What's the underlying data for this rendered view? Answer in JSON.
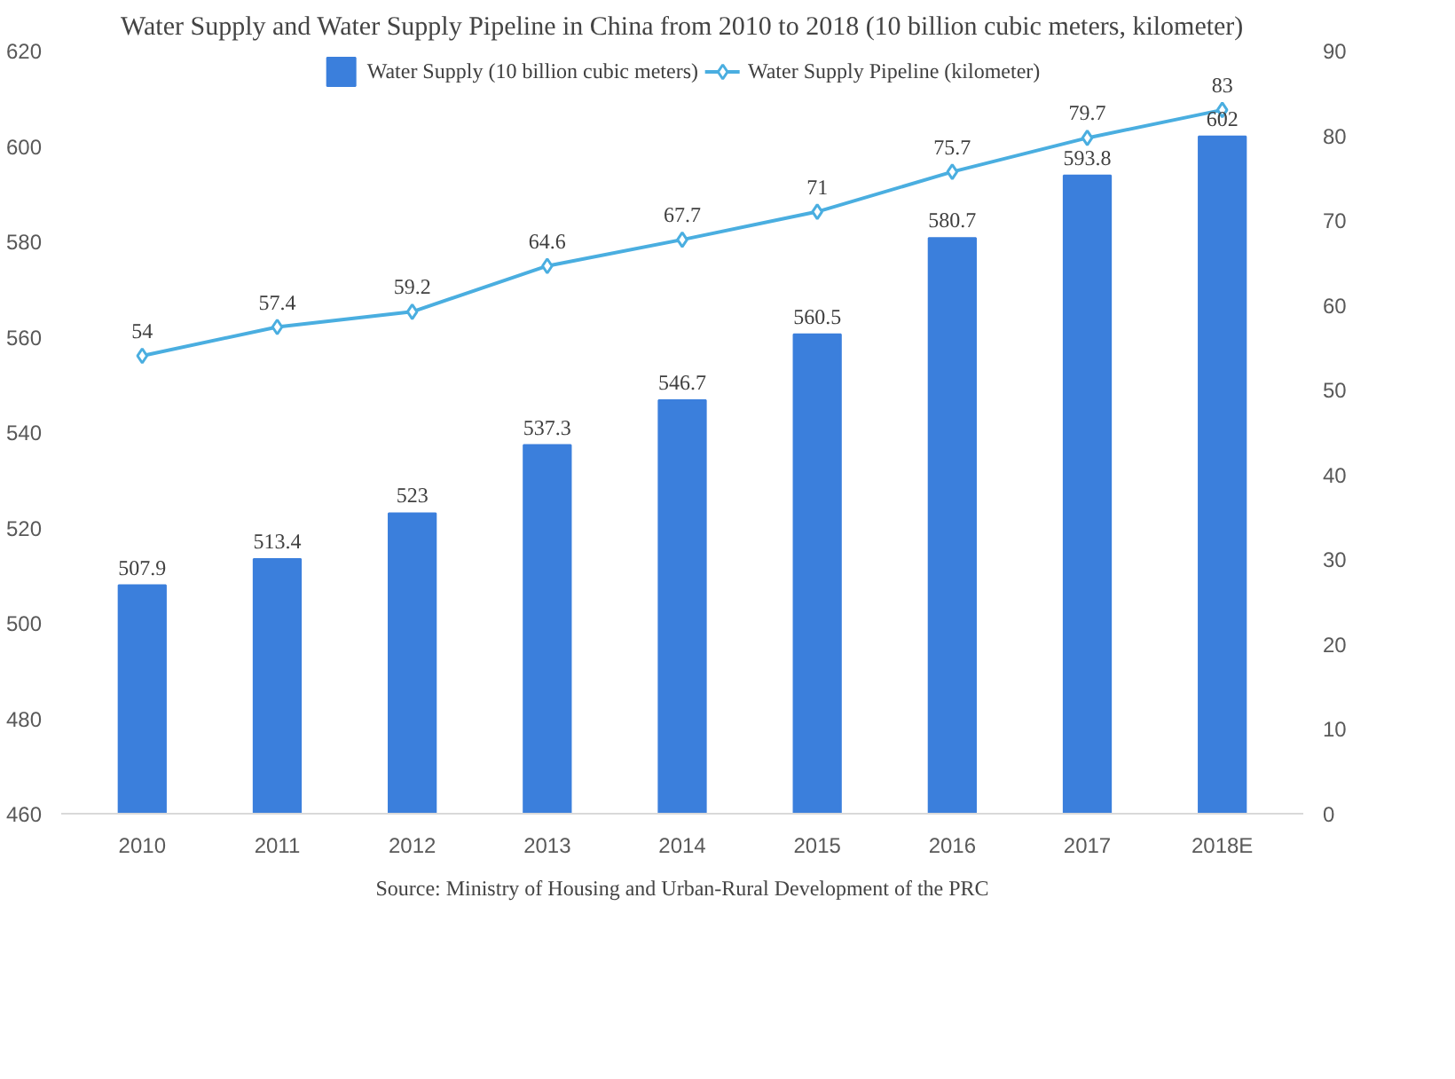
{
  "chart_data": {
    "type": "bar",
    "title": "Water Supply and Water Supply Pipeline in China from 2010 to 2018 (10 billion cubic meters, kilometer)",
    "categories": [
      "2010",
      "2011",
      "2012",
      "2013",
      "2014",
      "2015",
      "2016",
      "2017",
      "2018E"
    ],
    "series": [
      {
        "name": "Water Supply (10 billion cubic meters)",
        "color": "#3b7fdc",
        "values": [
          507.9,
          513.4,
          523,
          537.3,
          546.7,
          560.5,
          580.7,
          593.8,
          602
        ]
      },
      {
        "name": "Water Supply Pipeline (kilometer)",
        "type": "line",
        "axis": "y2",
        "color": "#4aaee0",
        "marker": "diamond",
        "values": [
          54,
          57.4,
          59.2,
          64.6,
          67.7,
          71,
          75.7,
          79.7,
          83
        ]
      }
    ],
    "ylim": [
      460,
      620
    ],
    "yticks": [
      460,
      480,
      500,
      520,
      540,
      560,
      580,
      600,
      620
    ],
    "y2lim": [
      0,
      90
    ],
    "y2ticks": [
      0,
      10,
      20,
      30,
      40,
      50,
      60,
      70,
      80,
      90
    ],
    "data_labels": true,
    "grid": false,
    "legend": "top",
    "annotations": [
      "Source: Ministry of Housing and Urban-Rural Development of the PRC"
    ]
  }
}
